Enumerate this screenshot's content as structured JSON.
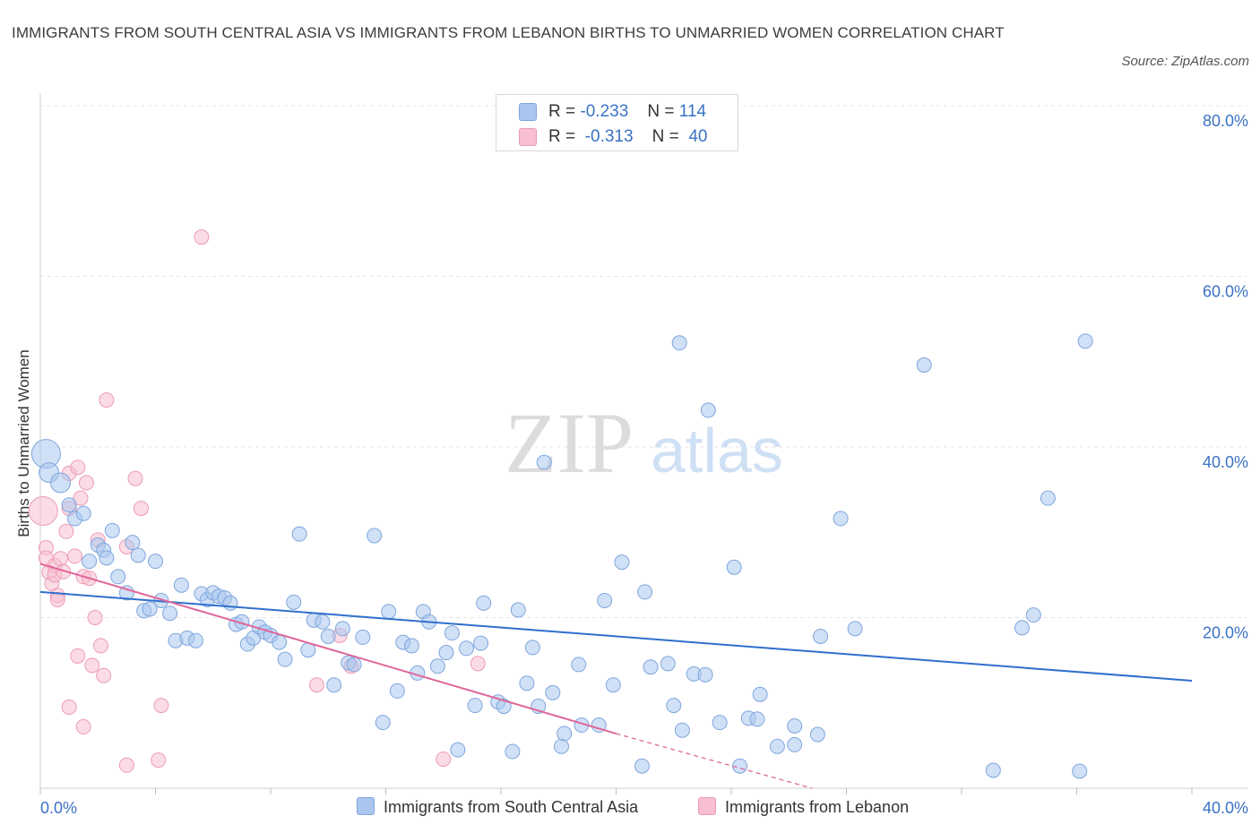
{
  "title": "IMMIGRANTS FROM SOUTH CENTRAL ASIA VS IMMIGRANTS FROM LEBANON BIRTHS TO UNMARRIED WOMEN CORRELATION CHART",
  "source": "Source: ZipAtlas.com",
  "watermark": {
    "zip": "ZIP",
    "atlas": "atlas"
  },
  "legend": {
    "r_label": "R =",
    "n_label": "N =",
    "series": [
      {
        "name": "Immigrants from South Central Asia",
        "r": "-0.233",
        "n": "114"
      },
      {
        "name": "Immigrants from Lebanon",
        "r": "-0.313",
        "n": "40"
      }
    ]
  },
  "colors": {
    "blue_fill": "#aac6ef",
    "blue_stroke": "#7fa6dd",
    "blue_line": "#2f6fcd",
    "pink_fill": "#f7bfd0",
    "pink_stroke": "#ec9bb6",
    "pink_line": "#e0679a",
    "grid": "#e3e3e3",
    "axis_text": "#3a72c4"
  },
  "chart_data": {
    "type": "scatter",
    "title": "IMMIGRANTS FROM SOUTH CENTRAL ASIA VS IMMIGRANTS FROM LEBANON BIRTHS TO UNMARRIED WOMEN CORRELATION CHART",
    "xlabel": "",
    "ylabel": "Births to Unmarried Women",
    "xlim": [
      0,
      40
    ],
    "ylim": [
      0,
      80
    ],
    "x_tick_labels": [
      {
        "value": 0,
        "label": "0.0%"
      },
      {
        "value": 40,
        "label": "40.0%"
      }
    ],
    "y_tick_labels": [
      {
        "value": 20,
        "label": "20.0%"
      },
      {
        "value": 40,
        "label": "40.0%"
      },
      {
        "value": 60,
        "label": "60.0%"
      },
      {
        "value": 80,
        "label": "80.0%"
      }
    ],
    "grid": true,
    "legend_position": "top-center",
    "series": [
      {
        "name": "Immigrants from South Central Asia",
        "color": "blue",
        "trend": {
          "x": [
            0,
            40
          ],
          "y": [
            23.0,
            12.6
          ]
        },
        "points": [
          {
            "x": 0.2,
            "y": 39.2,
            "s": 3
          },
          {
            "x": 0.3,
            "y": 37.0,
            "s": 2
          },
          {
            "x": 0.7,
            "y": 35.8,
            "s": 2
          },
          {
            "x": 1.0,
            "y": 33.2,
            "s": 1
          },
          {
            "x": 1.2,
            "y": 31.6,
            "s": 1
          },
          {
            "x": 1.5,
            "y": 32.2,
            "s": 1
          },
          {
            "x": 1.7,
            "y": 26.6,
            "s": 1
          },
          {
            "x": 2.0,
            "y": 28.5,
            "s": 1
          },
          {
            "x": 2.2,
            "y": 27.9,
            "s": 1
          },
          {
            "x": 2.3,
            "y": 27.0,
            "s": 1
          },
          {
            "x": 2.5,
            "y": 30.2,
            "s": 1
          },
          {
            "x": 2.7,
            "y": 24.8,
            "s": 1
          },
          {
            "x": 3.0,
            "y": 22.9,
            "s": 1
          },
          {
            "x": 3.2,
            "y": 28.8,
            "s": 1
          },
          {
            "x": 3.4,
            "y": 27.3,
            "s": 1
          },
          {
            "x": 3.6,
            "y": 20.8,
            "s": 1
          },
          {
            "x": 3.8,
            "y": 21.0,
            "s": 1
          },
          {
            "x": 4.0,
            "y": 26.6,
            "s": 1
          },
          {
            "x": 4.2,
            "y": 22.0,
            "s": 1
          },
          {
            "x": 4.5,
            "y": 20.5,
            "s": 1
          },
          {
            "x": 4.7,
            "y": 17.3,
            "s": 1
          },
          {
            "x": 4.9,
            "y": 23.8,
            "s": 1
          },
          {
            "x": 5.1,
            "y": 17.6,
            "s": 1
          },
          {
            "x": 5.4,
            "y": 17.3,
            "s": 1
          },
          {
            "x": 5.6,
            "y": 22.8,
            "s": 1
          },
          {
            "x": 5.8,
            "y": 22.1,
            "s": 1
          },
          {
            "x": 6.0,
            "y": 22.9,
            "s": 1
          },
          {
            "x": 6.2,
            "y": 22.5,
            "s": 1
          },
          {
            "x": 6.4,
            "y": 22.3,
            "s": 1
          },
          {
            "x": 6.6,
            "y": 21.7,
            "s": 1
          },
          {
            "x": 6.8,
            "y": 19.2,
            "s": 1
          },
          {
            "x": 7.0,
            "y": 19.5,
            "s": 1
          },
          {
            "x": 7.2,
            "y": 16.9,
            "s": 1
          },
          {
            "x": 7.4,
            "y": 17.6,
            "s": 1
          },
          {
            "x": 7.6,
            "y": 18.9,
            "s": 1
          },
          {
            "x": 7.8,
            "y": 18.3,
            "s": 1
          },
          {
            "x": 8.0,
            "y": 17.9,
            "s": 1
          },
          {
            "x": 8.3,
            "y": 17.1,
            "s": 1
          },
          {
            "x": 8.5,
            "y": 15.1,
            "s": 1
          },
          {
            "x": 8.8,
            "y": 21.8,
            "s": 1
          },
          {
            "x": 9.0,
            "y": 29.8,
            "s": 1
          },
          {
            "x": 9.3,
            "y": 16.2,
            "s": 1
          },
          {
            "x": 9.5,
            "y": 19.7,
            "s": 1
          },
          {
            "x": 9.8,
            "y": 19.5,
            "s": 1
          },
          {
            "x": 10.0,
            "y": 17.8,
            "s": 1
          },
          {
            "x": 10.2,
            "y": 12.1,
            "s": 1
          },
          {
            "x": 10.5,
            "y": 18.7,
            "s": 1
          },
          {
            "x": 10.7,
            "y": 14.7,
            "s": 1
          },
          {
            "x": 10.9,
            "y": 14.5,
            "s": 1
          },
          {
            "x": 11.2,
            "y": 17.7,
            "s": 1
          },
          {
            "x": 11.6,
            "y": 29.6,
            "s": 1
          },
          {
            "x": 11.9,
            "y": 7.7,
            "s": 1
          },
          {
            "x": 12.1,
            "y": 20.7,
            "s": 1
          },
          {
            "x": 12.4,
            "y": 11.4,
            "s": 1
          },
          {
            "x": 12.6,
            "y": 17.1,
            "s": 1
          },
          {
            "x": 12.9,
            "y": 16.7,
            "s": 1
          },
          {
            "x": 13.1,
            "y": 13.5,
            "s": 1
          },
          {
            "x": 13.3,
            "y": 20.7,
            "s": 1
          },
          {
            "x": 13.5,
            "y": 19.5,
            "s": 1
          },
          {
            "x": 13.8,
            "y": 14.3,
            "s": 1
          },
          {
            "x": 14.1,
            "y": 15.9,
            "s": 1
          },
          {
            "x": 14.3,
            "y": 18.2,
            "s": 1
          },
          {
            "x": 14.5,
            "y": 4.5,
            "s": 1
          },
          {
            "x": 14.8,
            "y": 16.4,
            "s": 1
          },
          {
            "x": 15.1,
            "y": 9.7,
            "s": 1
          },
          {
            "x": 15.3,
            "y": 17.0,
            "s": 1
          },
          {
            "x": 15.4,
            "y": 21.7,
            "s": 1
          },
          {
            "x": 15.9,
            "y": 10.1,
            "s": 1
          },
          {
            "x": 16.1,
            "y": 9.6,
            "s": 1
          },
          {
            "x": 16.4,
            "y": 4.3,
            "s": 1
          },
          {
            "x": 16.6,
            "y": 20.9,
            "s": 1
          },
          {
            "x": 16.9,
            "y": 12.3,
            "s": 1
          },
          {
            "x": 17.1,
            "y": 16.5,
            "s": 1
          },
          {
            "x": 17.3,
            "y": 9.6,
            "s": 1
          },
          {
            "x": 17.5,
            "y": 38.2,
            "s": 1
          },
          {
            "x": 17.8,
            "y": 11.2,
            "s": 1
          },
          {
            "x": 18.1,
            "y": 4.9,
            "s": 1
          },
          {
            "x": 18.2,
            "y": 6.4,
            "s": 1
          },
          {
            "x": 18.8,
            "y": 7.4,
            "s": 1
          },
          {
            "x": 18.7,
            "y": 14.5,
            "s": 1
          },
          {
            "x": 19.4,
            "y": 7.4,
            "s": 1
          },
          {
            "x": 19.6,
            "y": 22.0,
            "s": 1
          },
          {
            "x": 19.9,
            "y": 12.1,
            "s": 1
          },
          {
            "x": 20.2,
            "y": 26.5,
            "s": 1
          },
          {
            "x": 20.9,
            "y": 2.6,
            "s": 1
          },
          {
            "x": 21.0,
            "y": 23.0,
            "s": 1
          },
          {
            "x": 21.2,
            "y": 14.2,
            "s": 1
          },
          {
            "x": 21.8,
            "y": 14.6,
            "s": 1
          },
          {
            "x": 22.0,
            "y": 9.7,
            "s": 1
          },
          {
            "x": 22.2,
            "y": 52.2,
            "s": 1
          },
          {
            "x": 22.3,
            "y": 6.8,
            "s": 1
          },
          {
            "x": 22.7,
            "y": 13.4,
            "s": 1
          },
          {
            "x": 23.1,
            "y": 13.3,
            "s": 1
          },
          {
            "x": 23.2,
            "y": 44.3,
            "s": 1
          },
          {
            "x": 23.6,
            "y": 7.7,
            "s": 1
          },
          {
            "x": 24.1,
            "y": 25.9,
            "s": 1
          },
          {
            "x": 24.3,
            "y": 2.6,
            "s": 1
          },
          {
            "x": 24.6,
            "y": 8.2,
            "s": 1
          },
          {
            "x": 24.9,
            "y": 8.1,
            "s": 1
          },
          {
            "x": 25.6,
            "y": 4.9,
            "s": 1
          },
          {
            "x": 25.0,
            "y": 11.0,
            "s": 1
          },
          {
            "x": 26.2,
            "y": 7.3,
            "s": 1
          },
          {
            "x": 26.2,
            "y": 5.1,
            "s": 1
          },
          {
            "x": 27.0,
            "y": 6.3,
            "s": 1
          },
          {
            "x": 27.1,
            "y": 17.8,
            "s": 1
          },
          {
            "x": 27.8,
            "y": 31.6,
            "s": 1
          },
          {
            "x": 28.3,
            "y": 18.7,
            "s": 1
          },
          {
            "x": 30.7,
            "y": 49.6,
            "s": 1
          },
          {
            "x": 33.1,
            "y": 2.1,
            "s": 1
          },
          {
            "x": 34.1,
            "y": 18.8,
            "s": 1
          },
          {
            "x": 34.5,
            "y": 20.3,
            "s": 1
          },
          {
            "x": 35.0,
            "y": 34.0,
            "s": 1
          },
          {
            "x": 36.1,
            "y": 2.0,
            "s": 1
          },
          {
            "x": 36.3,
            "y": 52.4,
            "s": 1
          }
        ]
      },
      {
        "name": "Immigrants from Lebanon",
        "color": "pink",
        "trend": {
          "x": [
            0,
            20
          ],
          "y": [
            26.3,
            6.4
          ],
          "dashed_extension": {
            "x": [
              20,
              26.8
            ],
            "y": [
              6.4,
              0
            ]
          }
        },
        "points": [
          {
            "x": 0.1,
            "y": 32.5,
            "s": 3
          },
          {
            "x": 0.2,
            "y": 28.2,
            "s": 1
          },
          {
            "x": 0.2,
            "y": 27.0,
            "s": 1
          },
          {
            "x": 0.3,
            "y": 25.3,
            "s": 1
          },
          {
            "x": 0.4,
            "y": 24.0,
            "s": 1
          },
          {
            "x": 0.5,
            "y": 26.1,
            "s": 1
          },
          {
            "x": 0.5,
            "y": 25.0,
            "s": 1
          },
          {
            "x": 0.6,
            "y": 22.6,
            "s": 1
          },
          {
            "x": 0.6,
            "y": 22.1,
            "s": 1
          },
          {
            "x": 0.7,
            "y": 26.9,
            "s": 1
          },
          {
            "x": 0.8,
            "y": 25.4,
            "s": 1
          },
          {
            "x": 0.9,
            "y": 30.1,
            "s": 1
          },
          {
            "x": 1.0,
            "y": 32.8,
            "s": 1
          },
          {
            "x": 1.0,
            "y": 36.9,
            "s": 1
          },
          {
            "x": 1.2,
            "y": 27.2,
            "s": 1
          },
          {
            "x": 1.3,
            "y": 37.6,
            "s": 1
          },
          {
            "x": 1.4,
            "y": 34.0,
            "s": 1
          },
          {
            "x": 1.5,
            "y": 24.8,
            "s": 1
          },
          {
            "x": 1.6,
            "y": 35.8,
            "s": 1
          },
          {
            "x": 1.7,
            "y": 24.6,
            "s": 1
          },
          {
            "x": 1.9,
            "y": 20.0,
            "s": 1
          },
          {
            "x": 2.0,
            "y": 29.1,
            "s": 1
          },
          {
            "x": 2.1,
            "y": 16.7,
            "s": 1
          },
          {
            "x": 2.2,
            "y": 13.2,
            "s": 1
          },
          {
            "x": 1.3,
            "y": 15.5,
            "s": 1
          },
          {
            "x": 1.8,
            "y": 14.4,
            "s": 1
          },
          {
            "x": 1.0,
            "y": 9.5,
            "s": 1
          },
          {
            "x": 1.5,
            "y": 7.2,
            "s": 1
          },
          {
            "x": 2.3,
            "y": 45.5,
            "s": 1
          },
          {
            "x": 3.0,
            "y": 28.3,
            "s": 1
          },
          {
            "x": 3.3,
            "y": 36.3,
            "s": 1
          },
          {
            "x": 3.5,
            "y": 32.8,
            "s": 1
          },
          {
            "x": 3.0,
            "y": 2.7,
            "s": 1
          },
          {
            "x": 4.1,
            "y": 3.3,
            "s": 1
          },
          {
            "x": 4.2,
            "y": 9.7,
            "s": 1
          },
          {
            "x": 5.6,
            "y": 64.6,
            "s": 1
          },
          {
            "x": 9.6,
            "y": 12.1,
            "s": 1
          },
          {
            "x": 10.4,
            "y": 17.9,
            "s": 1
          },
          {
            "x": 10.8,
            "y": 14.3,
            "s": 1
          },
          {
            "x": 14.0,
            "y": 3.4,
            "s": 1
          },
          {
            "x": 15.2,
            "y": 14.6,
            "s": 1
          }
        ]
      }
    ]
  }
}
